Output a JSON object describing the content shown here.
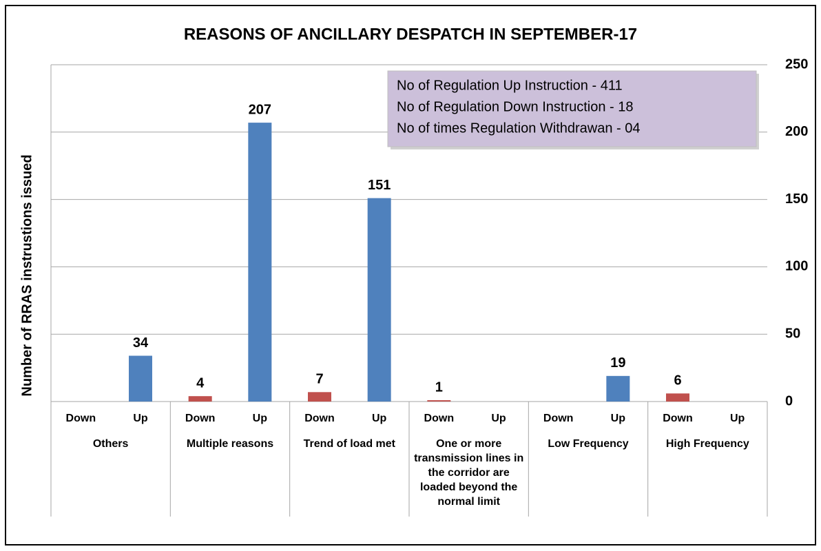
{
  "chart_data": {
    "type": "bar",
    "title": "REASONS OF ANCILLARY DESPATCH IN SEPTEMBER-17",
    "y_label": "Number of RRAS instrustions issued",
    "annotations": [
      "No of  Regulation Up Instruction -  411",
      "No of  Regulation  Down Instruction -  18",
      "No of   times  Regulation  Withdrawan - 04"
    ],
    "groups": [
      "Others",
      "Multiple reasons",
      "Trend of load met",
      "One or more transmission lines in the corridor are loaded beyond the normal limit",
      "Low Frequency",
      "High Frequency"
    ],
    "categories": [
      "Down",
      "Up",
      "Down",
      "Up",
      "Down",
      "Up",
      "Down",
      "Up",
      "Down",
      "Up",
      "Down",
      "Up"
    ],
    "values": [
      null,
      34,
      4,
      207,
      7,
      151,
      1,
      null,
      null,
      19,
      6,
      null
    ],
    "colors": {
      "Down": "#c0504d",
      "Up": "#4f81bd"
    },
    "ylim": [
      0,
      250
    ],
    "yticks": [
      0,
      50,
      100,
      150,
      200,
      250
    ],
    "grid": true
  }
}
